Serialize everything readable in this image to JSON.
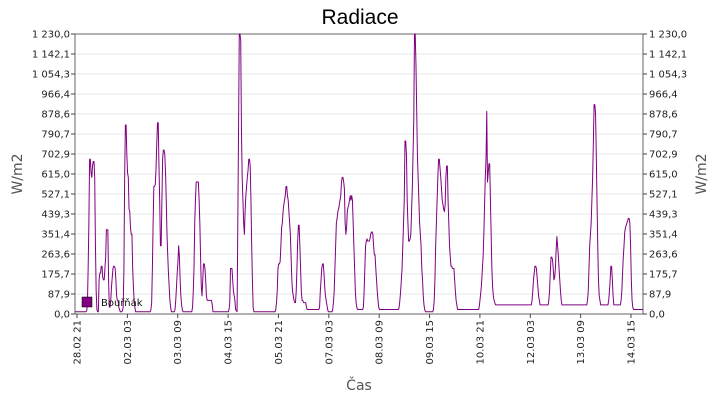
{
  "chart_data": {
    "type": "line",
    "title": "Radiace",
    "xlabel": "Čas",
    "ylabel": "W/m2",
    "ylabel_right": "W/m2",
    "ylim": [
      0,
      1230
    ],
    "y_ticks": [
      "0,0",
      "87,9",
      "175,7",
      "263,6",
      "351,4",
      "439,3",
      "527,1",
      "615,0",
      "702,9",
      "790,7",
      "878,6",
      "966,4",
      "1 054,3",
      "1 142,1",
      "1 230,0"
    ],
    "x_ticks": [
      "28.02 21",
      "02.03 03",
      "03.03 09",
      "04.03 15",
      "05.03 21",
      "07.03 03",
      "08.03 09",
      "09.03 15",
      "10.03 21",
      "12.03 03",
      "13.03 09",
      "14.03 15"
    ],
    "grid": true,
    "legend_position": "bottom-left",
    "series": [
      {
        "name": "Bouřňák",
        "color": "#800080",
        "values": [
          10,
          10,
          10,
          10,
          10,
          10,
          10,
          10,
          10,
          10,
          10,
          10,
          10,
          10,
          10,
          10,
          15,
          40,
          200,
          400,
          680,
          680,
          620,
          600,
          650,
          670,
          670,
          600,
          300,
          100,
          20,
          10,
          10,
          150,
          180,
          180,
          210,
          210,
          160,
          150,
          150,
          200,
          250,
          370,
          370,
          370,
          150,
          30,
          30,
          60,
          120,
          160,
          200,
          210,
          210,
          200,
          150,
          80,
          60,
          60,
          30,
          20,
          10,
          10,
          10,
          15,
          30,
          200,
          600,
          830,
          830,
          700,
          620,
          600,
          460,
          450,
          380,
          350,
          350,
          200,
          120,
          60,
          30,
          10,
          10,
          10,
          10,
          10,
          10,
          10,
          10,
          10,
          10,
          10,
          10,
          10,
          10,
          10,
          10,
          10,
          10,
          10,
          10,
          10,
          20,
          50,
          200,
          400,
          560,
          560,
          570,
          640,
          750,
          840,
          840,
          650,
          500,
          300,
          300,
          490,
          680,
          720,
          720,
          700,
          620,
          500,
          350,
          260,
          180,
          120,
          60,
          30,
          10,
          10,
          10,
          10,
          10,
          20,
          60,
          120,
          180,
          230,
          300,
          250,
          150,
          80,
          40,
          20,
          10,
          10,
          10,
          10,
          10,
          10,
          10,
          10,
          10,
          10,
          10,
          10,
          10,
          30,
          100,
          200,
          400,
          500,
          580,
          580,
          580,
          580,
          500,
          400,
          250,
          120,
          80,
          150,
          220,
          220,
          200,
          150,
          80,
          60,
          60,
          60,
          60,
          60,
          60,
          60,
          40,
          10,
          10,
          10,
          10,
          10,
          10,
          10,
          10,
          10,
          10,
          10,
          10,
          10,
          10,
          10,
          10,
          10,
          10,
          10,
          10,
          10,
          10,
          20,
          50,
          200,
          200,
          200,
          150,
          100,
          80,
          60,
          20,
          15,
          10,
          400,
          800,
          1230,
          1230,
          1200,
          800,
          600,
          500,
          400,
          350,
          450,
          520,
          560,
          600,
          630,
          680,
          680,
          650,
          500,
          300,
          150,
          30,
          10,
          10,
          10,
          10,
          10,
          10,
          10,
          10,
          10,
          10,
          10,
          10,
          10,
          10,
          10,
          10,
          10,
          10,
          10,
          10,
          10,
          10,
          10,
          10,
          10,
          10,
          10,
          10,
          10,
          10,
          20,
          50,
          100,
          200,
          220,
          220,
          230,
          300,
          380,
          400,
          450,
          480,
          500,
          520,
          560,
          560,
          520,
          500,
          450,
          400,
          350,
          250,
          150,
          100,
          80,
          60,
          50,
          50,
          100,
          200,
          320,
          390,
          390,
          300,
          200,
          100,
          60,
          60,
          50,
          50,
          50,
          50,
          30,
          20,
          20,
          20,
          20,
          20,
          20,
          20,
          20,
          20,
          20,
          20,
          20,
          20,
          20,
          20,
          20,
          20,
          30,
          100,
          150,
          200,
          220,
          220,
          180,
          120,
          80,
          60,
          40,
          20,
          10,
          10,
          10,
          10,
          10,
          10,
          20,
          50,
          100,
          200,
          300,
          400,
          420,
          450,
          460,
          480,
          500,
          520,
          580,
          600,
          600,
          580,
          550,
          400,
          350,
          380,
          450,
          470,
          480,
          500,
          520,
          500,
          520,
          500,
          400,
          300,
          200,
          100,
          50,
          30,
          20,
          20,
          20,
          20,
          20,
          20,
          20,
          20,
          30,
          100,
          200,
          300,
          320,
          330,
          320,
          320,
          320,
          330,
          350,
          360,
          360,
          350,
          300,
          260,
          260,
          200,
          150,
          100,
          60,
          30,
          20,
          20,
          20,
          20,
          20,
          20,
          20,
          20,
          20,
          20,
          20,
          20,
          20,
          20,
          20,
          20,
          20,
          20,
          20,
          20,
          20,
          20,
          20,
          20,
          20,
          20,
          20,
          30,
          60,
          100,
          150,
          200,
          300,
          400,
          500,
          760,
          760,
          700,
          500,
          400,
          320,
          320,
          330,
          350,
          450,
          550,
          700,
          850,
          1230,
          1230,
          1100,
          900,
          700,
          600,
          500,
          400,
          350,
          300,
          200,
          150,
          80,
          40,
          20,
          10,
          10,
          10,
          10,
          10,
          10,
          10,
          10,
          10,
          10,
          10,
          20,
          60,
          150,
          300,
          400,
          500,
          600,
          680,
          680,
          640,
          600,
          550,
          500,
          480,
          460,
          450,
          480,
          600,
          650,
          650,
          500,
          400,
          300,
          250,
          210,
          210,
          200,
          200,
          200,
          150,
          100,
          60,
          40,
          20,
          20,
          20,
          20,
          20,
          20,
          20,
          20,
          20,
          20,
          20,
          20,
          20,
          20,
          20,
          20,
          20,
          20,
          20,
          20,
          20,
          20,
          20,
          20,
          20,
          20,
          20,
          20,
          20,
          20,
          40,
          70,
          100,
          140,
          200,
          250,
          350,
          480,
          600,
          680,
          890,
          580,
          620,
          660,
          660,
          500,
          350,
          200,
          120,
          80,
          60,
          50,
          40,
          40,
          40,
          40,
          40,
          40,
          40,
          40,
          40,
          40,
          40,
          40,
          40,
          40,
          40,
          40,
          40,
          40,
          40,
          40,
          40,
          40,
          40,
          40,
          40,
          40,
          40,
          40,
          40,
          40,
          40,
          40,
          40,
          40,
          40,
          40,
          40,
          40,
          40,
          40,
          40,
          40,
          40,
          40,
          40,
          40,
          40,
          40,
          40,
          40,
          60,
          100,
          150,
          180,
          210,
          210,
          200,
          160,
          120,
          80,
          60,
          40,
          40,
          40,
          40,
          40,
          40,
          40,
          40,
          40,
          40,
          40,
          40,
          60,
          100,
          180,
          250,
          250,
          240,
          200,
          150,
          160,
          200,
          280,
          340,
          300,
          260,
          200,
          150,
          100,
          60,
          40,
          40,
          40,
          40,
          40,
          40,
          40,
          40,
          40,
          40,
          40,
          40,
          40,
          40,
          40,
          40,
          40,
          40,
          40,
          40,
          40,
          40,
          40,
          40,
          40,
          40,
          40,
          40,
          40,
          40,
          40,
          40,
          40,
          40,
          40,
          60,
          100,
          200,
          300,
          350,
          400,
          500,
          600,
          750,
          920,
          920,
          880,
          700,
          500,
          300,
          150,
          80,
          60,
          40,
          40,
          40,
          40,
          40,
          40,
          40,
          40,
          40,
          40,
          40,
          60,
          100,
          150,
          210,
          210,
          150,
          80,
          40,
          40,
          40,
          40,
          40,
          40,
          40,
          40,
          40,
          40,
          60,
          100,
          180,
          250,
          300,
          360,
          380,
          390,
          400,
          410,
          420,
          420,
          400,
          300,
          150,
          60,
          30,
          20,
          20,
          20,
          20,
          20,
          20,
          20,
          20,
          20,
          20,
          20,
          20,
          20,
          20
        ]
      }
    ]
  }
}
